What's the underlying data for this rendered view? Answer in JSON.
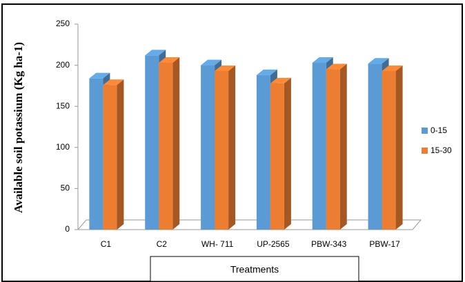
{
  "chart_data": {
    "type": "bar3d",
    "ylabel": "Available soil potassium (Kg ha-1)",
    "xlabel": "Treatments",
    "categories": [
      "C1",
      "C2",
      "WH- 711",
      "UP-2565",
      "PBW-343",
      "PBW-17"
    ],
    "series": [
      {
        "name": "0-15",
        "color": "#5b9bd5",
        "values": [
          184,
          212,
          200,
          188,
          203,
          202
        ]
      },
      {
        "name": "15-30",
        "color": "#ed7d31",
        "values": [
          176,
          203,
          193,
          178,
          195,
          193
        ]
      }
    ],
    "ylim": [
      0,
      250
    ],
    "yticks": [
      0,
      50,
      100,
      150,
      200,
      250
    ],
    "legend": "right"
  }
}
